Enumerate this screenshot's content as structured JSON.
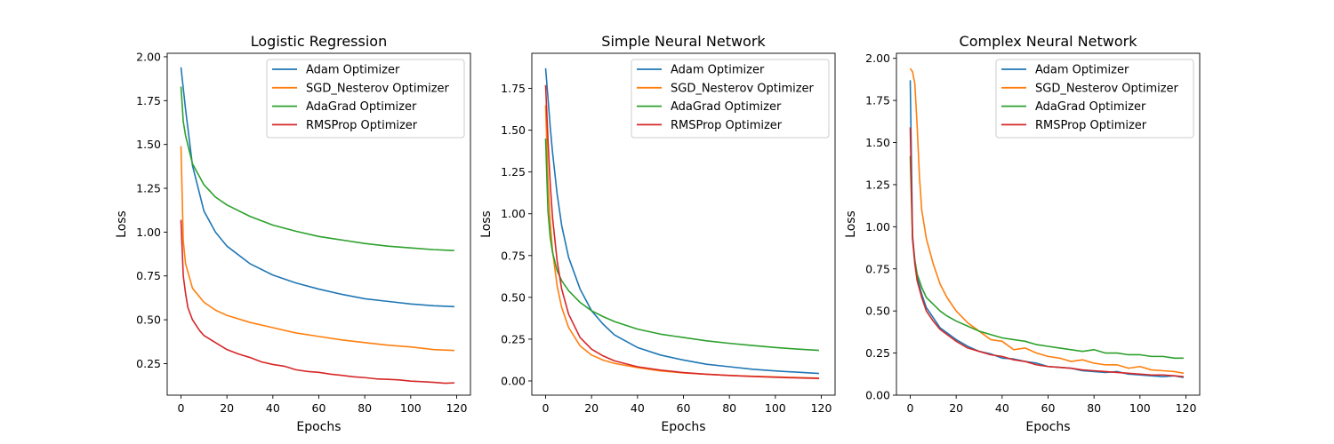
{
  "chart_data": [
    {
      "type": "line",
      "title": "Logistic Regression",
      "xlabel": "Epochs",
      "ylabel": "Loss",
      "xlim": [
        -6,
        126
      ],
      "ylim": [
        0.07,
        2.02
      ],
      "xticks": [
        0,
        20,
        40,
        60,
        80,
        100,
        120
      ],
      "yticks": [
        0.25,
        0.5,
        0.75,
        1.0,
        1.25,
        1.5,
        1.75,
        2.0
      ],
      "ytick_labels": [
        "0.25",
        "0.50",
        "0.75",
        "1.00",
        "1.25",
        "1.50",
        "1.75",
        "2.00"
      ],
      "legend_position": "top-right",
      "series": [
        {
          "name": "Adam Optimizer",
          "color": "#1f77b4",
          "x": [
            0,
            2,
            5,
            10,
            15,
            20,
            30,
            40,
            50,
            60,
            70,
            80,
            90,
            100,
            110,
            119
          ],
          "y": [
            1.94,
            1.7,
            1.38,
            1.12,
            1.0,
            0.92,
            0.82,
            0.755,
            0.71,
            0.675,
            0.645,
            0.62,
            0.605,
            0.59,
            0.58,
            0.575
          ]
        },
        {
          "name": "SGD_Nesterov Optimizer",
          "color": "#ff7f0e",
          "x": [
            0,
            1,
            2,
            5,
            10,
            15,
            20,
            30,
            40,
            50,
            60,
            70,
            80,
            90,
            100,
            110,
            119
          ],
          "y": [
            1.49,
            0.95,
            0.82,
            0.68,
            0.6,
            0.555,
            0.525,
            0.485,
            0.455,
            0.425,
            0.405,
            0.385,
            0.37,
            0.355,
            0.345,
            0.33,
            0.325
          ]
        },
        {
          "name": "AdaGrad Optimizer",
          "color": "#2ca02c",
          "x": [
            0,
            1,
            2,
            5,
            10,
            15,
            20,
            30,
            40,
            50,
            60,
            70,
            80,
            90,
            100,
            110,
            119
          ],
          "y": [
            1.83,
            1.63,
            1.55,
            1.39,
            1.27,
            1.2,
            1.155,
            1.09,
            1.04,
            1.005,
            0.975,
            0.955,
            0.935,
            0.92,
            0.91,
            0.9,
            0.895
          ]
        },
        {
          "name": "RMSProp Optimizer",
          "color": "#d62728",
          "x": [
            0,
            1,
            2,
            3,
            5,
            8,
            10,
            15,
            20,
            25,
            30,
            35,
            40,
            45,
            50,
            55,
            60,
            65,
            70,
            75,
            80,
            85,
            90,
            95,
            100,
            105,
            110,
            115,
            119
          ],
          "y": [
            1.07,
            0.75,
            0.65,
            0.57,
            0.5,
            0.44,
            0.41,
            0.37,
            0.33,
            0.305,
            0.285,
            0.26,
            0.245,
            0.235,
            0.215,
            0.205,
            0.2,
            0.19,
            0.183,
            0.175,
            0.17,
            0.163,
            0.16,
            0.157,
            0.15,
            0.147,
            0.143,
            0.138,
            0.14
          ]
        }
      ]
    },
    {
      "type": "line",
      "title": "Simple Neural Network",
      "xlabel": "Epochs",
      "ylabel": "Loss",
      "xlim": [
        -6,
        126
      ],
      "ylim": [
        -0.085,
        1.96
      ],
      "xticks": [
        0,
        20,
        40,
        60,
        80,
        100,
        120
      ],
      "yticks": [
        0.0,
        0.25,
        0.5,
        0.75,
        1.0,
        1.25,
        1.5,
        1.75
      ],
      "ytick_labels": [
        "0.00",
        "0.25",
        "0.50",
        "0.75",
        "1.00",
        "1.25",
        "1.50",
        "1.75"
      ],
      "legend_position": "top-right",
      "series": [
        {
          "name": "Adam Optimizer",
          "color": "#1f77b4",
          "x": [
            0,
            1,
            2,
            3,
            5,
            7,
            10,
            15,
            20,
            25,
            30,
            40,
            50,
            60,
            70,
            80,
            90,
            100,
            110,
            119
          ],
          "y": [
            1.87,
            1.7,
            1.52,
            1.37,
            1.12,
            0.93,
            0.74,
            0.55,
            0.42,
            0.34,
            0.275,
            0.2,
            0.155,
            0.125,
            0.1,
            0.085,
            0.07,
            0.06,
            0.052,
            0.045
          ]
        },
        {
          "name": "SGD_Nesterov Optimizer",
          "color": "#ff7f0e",
          "x": [
            0,
            1,
            2,
            3,
            5,
            7,
            10,
            15,
            20,
            25,
            30,
            40,
            50,
            60,
            70,
            80,
            90,
            100,
            110,
            119
          ],
          "y": [
            1.65,
            1.2,
            0.95,
            0.78,
            0.57,
            0.44,
            0.32,
            0.21,
            0.155,
            0.125,
            0.105,
            0.08,
            0.06,
            0.048,
            0.04,
            0.033,
            0.028,
            0.024,
            0.02,
            0.017
          ]
        },
        {
          "name": "AdaGrad Optimizer",
          "color": "#2ca02c",
          "x": [
            0,
            1,
            2,
            3,
            5,
            7,
            10,
            15,
            20,
            25,
            30,
            40,
            50,
            60,
            70,
            80,
            90,
            100,
            110,
            119
          ],
          "y": [
            1.45,
            1.02,
            0.86,
            0.77,
            0.66,
            0.6,
            0.54,
            0.47,
            0.42,
            0.385,
            0.355,
            0.31,
            0.28,
            0.26,
            0.24,
            0.225,
            0.212,
            0.2,
            0.19,
            0.183
          ]
        },
        {
          "name": "RMSProp Optimizer",
          "color": "#d62728",
          "x": [
            0,
            1,
            2,
            3,
            5,
            7,
            10,
            15,
            20,
            25,
            30,
            40,
            50,
            60,
            70,
            80,
            90,
            100,
            110,
            119
          ],
          "y": [
            1.77,
            1.45,
            1.18,
            0.98,
            0.72,
            0.55,
            0.4,
            0.26,
            0.19,
            0.15,
            0.12,
            0.085,
            0.065,
            0.05,
            0.04,
            0.033,
            0.027,
            0.022,
            0.018,
            0.015
          ]
        }
      ]
    },
    {
      "type": "line",
      "title": "Complex Neural Network",
      "xlabel": "Epochs",
      "ylabel": "Loss",
      "xlim": [
        -6,
        126
      ],
      "ylim": [
        0.0,
        2.03
      ],
      "xticks": [
        0,
        20,
        40,
        60,
        80,
        100,
        120
      ],
      "yticks": [
        0.0,
        0.25,
        0.5,
        0.75,
        1.0,
        1.25,
        1.5,
        1.75,
        2.0
      ],
      "ytick_labels": [
        "0.00",
        "0.25",
        "0.50",
        "0.75",
        "1.00",
        "1.25",
        "1.50",
        "1.75",
        "2.00"
      ],
      "legend_position": "top-right",
      "series": [
        {
          "name": "Adam Optimizer",
          "color": "#1f77b4",
          "x": [
            0,
            1,
            2,
            3,
            5,
            7,
            10,
            13,
            16,
            20,
            25,
            30,
            35,
            40,
            45,
            50,
            55,
            60,
            65,
            70,
            75,
            80,
            85,
            90,
            95,
            100,
            105,
            110,
            115,
            119
          ],
          "y": [
            1.87,
            0.95,
            0.8,
            0.7,
            0.6,
            0.52,
            0.46,
            0.4,
            0.37,
            0.33,
            0.29,
            0.26,
            0.245,
            0.22,
            0.215,
            0.2,
            0.19,
            0.17,
            0.165,
            0.16,
            0.145,
            0.14,
            0.135,
            0.14,
            0.125,
            0.12,
            0.115,
            0.11,
            0.115,
            0.105
          ]
        },
        {
          "name": "SGD_Nesterov Optimizer",
          "color": "#ff7f0e",
          "x": [
            0,
            1,
            2,
            3,
            4,
            5,
            7,
            10,
            13,
            16,
            20,
            25,
            30,
            35,
            40,
            45,
            50,
            55,
            60,
            65,
            70,
            75,
            80,
            85,
            90,
            95,
            100,
            105,
            110,
            115,
            119
          ],
          "y": [
            1.94,
            1.92,
            1.85,
            1.6,
            1.3,
            1.1,
            0.93,
            0.78,
            0.66,
            0.58,
            0.5,
            0.43,
            0.38,
            0.33,
            0.32,
            0.27,
            0.28,
            0.25,
            0.23,
            0.22,
            0.2,
            0.21,
            0.19,
            0.18,
            0.18,
            0.16,
            0.17,
            0.15,
            0.145,
            0.14,
            0.13
          ]
        },
        {
          "name": "AdaGrad Optimizer",
          "color": "#2ca02c",
          "x": [
            0,
            1,
            2,
            3,
            5,
            7,
            10,
            13,
            16,
            20,
            25,
            30,
            35,
            40,
            45,
            50,
            55,
            60,
            65,
            70,
            75,
            80,
            85,
            90,
            95,
            100,
            105,
            110,
            115,
            119
          ],
          "y": [
            1.42,
            0.93,
            0.8,
            0.72,
            0.64,
            0.58,
            0.54,
            0.5,
            0.47,
            0.44,
            0.41,
            0.38,
            0.36,
            0.34,
            0.33,
            0.32,
            0.3,
            0.29,
            0.28,
            0.27,
            0.26,
            0.27,
            0.25,
            0.25,
            0.24,
            0.24,
            0.23,
            0.23,
            0.22,
            0.22
          ]
        },
        {
          "name": "RMSProp Optimizer",
          "color": "#d62728",
          "x": [
            0,
            1,
            2,
            3,
            5,
            7,
            10,
            13,
            16,
            20,
            25,
            30,
            35,
            40,
            45,
            50,
            55,
            60,
            65,
            70,
            75,
            80,
            85,
            90,
            95,
            100,
            105,
            110,
            115,
            119
          ],
          "y": [
            1.59,
            0.93,
            0.78,
            0.68,
            0.58,
            0.5,
            0.44,
            0.39,
            0.36,
            0.32,
            0.28,
            0.26,
            0.24,
            0.23,
            0.21,
            0.2,
            0.18,
            0.17,
            0.165,
            0.16,
            0.15,
            0.145,
            0.14,
            0.135,
            0.13,
            0.125,
            0.12,
            0.12,
            0.115,
            0.11
          ]
        }
      ]
    }
  ]
}
